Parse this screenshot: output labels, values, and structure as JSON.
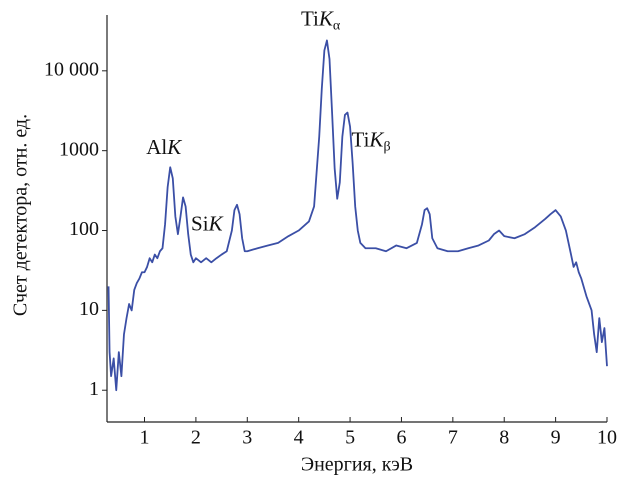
{
  "chart_data": {
    "type": "line",
    "log_y": true,
    "color": "#3b4fa6",
    "xlabel": "Энергия, кэВ",
    "ylabel": "Счет детектора, отн. ед.",
    "xlim": [
      0.27,
      10
    ],
    "ylim": [
      0.4,
      50000
    ],
    "xticks": [
      1,
      2,
      3,
      4,
      5,
      6,
      7,
      8,
      9,
      10
    ],
    "yticks": [
      1,
      10,
      100,
      1000,
      {
        "value": 10000,
        "label": "10 000"
      }
    ],
    "x": [
      0.3,
      0.32,
      0.35,
      0.4,
      0.45,
      0.5,
      0.55,
      0.6,
      0.65,
      0.7,
      0.75,
      0.8,
      0.85,
      0.9,
      0.95,
      1.0,
      1.05,
      1.1,
      1.15,
      1.2,
      1.25,
      1.3,
      1.35,
      1.4,
      1.45,
      1.5,
      1.55,
      1.6,
      1.65,
      1.7,
      1.75,
      1.8,
      1.85,
      1.9,
      1.95,
      2.0,
      2.1,
      2.2,
      2.3,
      2.4,
      2.5,
      2.6,
      2.7,
      2.75,
      2.8,
      2.85,
      2.9,
      2.95,
      3.0,
      3.2,
      3.4,
      3.6,
      3.8,
      4.0,
      4.2,
      4.3,
      4.4,
      4.45,
      4.5,
      4.55,
      4.6,
      4.65,
      4.7,
      4.75,
      4.8,
      4.85,
      4.9,
      4.95,
      5.0,
      5.05,
      5.1,
      5.15,
      5.2,
      5.3,
      5.5,
      5.7,
      5.9,
      6.1,
      6.3,
      6.4,
      6.45,
      6.5,
      6.55,
      6.6,
      6.7,
      6.9,
      7.1,
      7.3,
      7.5,
      7.7,
      7.8,
      7.9,
      8.0,
      8.2,
      8.4,
      8.6,
      8.8,
      8.9,
      9.0,
      9.1,
      9.2,
      9.3,
      9.35,
      9.4,
      9.45,
      9.5,
      9.6,
      9.7,
      9.75,
      9.8,
      9.85,
      9.9,
      9.95,
      10.0
    ],
    "values": [
      20,
      3,
      1.5,
      2.5,
      1,
      3,
      1.5,
      5,
      8,
      12,
      10,
      18,
      22,
      25,
      30,
      30,
      35,
      45,
      40,
      50,
      45,
      55,
      60,
      120,
      350,
      620,
      450,
      150,
      90,
      150,
      260,
      200,
      90,
      50,
      40,
      45,
      40,
      45,
      40,
      45,
      50,
      55,
      100,
      180,
      210,
      160,
      80,
      55,
      55,
      60,
      65,
      70,
      85,
      100,
      130,
      200,
      1500,
      6000,
      18000,
      24000,
      14000,
      3000,
      600,
      250,
      400,
      1500,
      2800,
      3000,
      2000,
      700,
      200,
      100,
      70,
      60,
      60,
      55,
      65,
      60,
      70,
      120,
      180,
      190,
      160,
      80,
      60,
      55,
      55,
      60,
      65,
      75,
      90,
      100,
      85,
      80,
      90,
      110,
      140,
      160,
      180,
      150,
      100,
      50,
      35,
      40,
      30,
      25,
      15,
      10,
      5,
      3,
      8,
      4,
      6,
      2
    ],
    "annotations": [
      {
        "element": "Al",
        "line": "K",
        "x": 1.5,
        "y": 620
      },
      {
        "element": "Si",
        "line": "K",
        "x": 1.75,
        "y": 260
      },
      {
        "element": "Ti",
        "line": "K",
        "sub": "α",
        "x": 4.55,
        "y": 24000
      },
      {
        "element": "Ti",
        "line": "K",
        "sub": "β",
        "x": 4.95,
        "y": 3000
      }
    ]
  }
}
